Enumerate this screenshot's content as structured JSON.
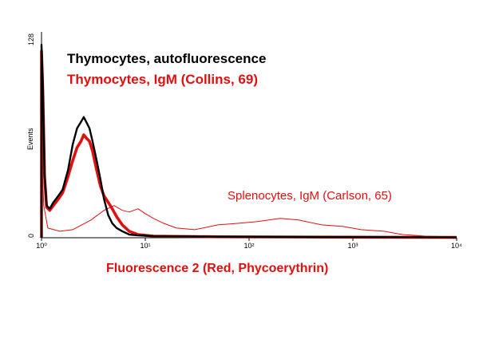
{
  "chart_data": {
    "type": "line",
    "x_scale": "log",
    "xlim": [
      1,
      10000
    ],
    "ylim": [
      0,
      128
    ],
    "xlabel": "Fluorescence 2 (Red, Phycoerythrin)",
    "ylabel": "Events",
    "y_ticks": [
      "0",
      "128"
    ],
    "x_ticks": [
      {
        "value": 1,
        "label": "10⁰"
      },
      {
        "value": 10,
        "label": "10¹"
      },
      {
        "value": 100,
        "label": "10²"
      },
      {
        "value": 1000,
        "label": "10³"
      },
      {
        "value": 10000,
        "label": "10⁴"
      }
    ],
    "legend": [
      {
        "text": "Thymocytes, autofluorescence",
        "color": "#000000"
      },
      {
        "text": "Thymocytes, IgM (Collins, 69)",
        "color": "#e01010"
      }
    ],
    "annotation": {
      "text": "Splenocytes, IgM (Carlson, 65)",
      "color": "#e01010"
    },
    "series": [
      {
        "name": "Thymocytes, autofluorescence",
        "color": "#000000",
        "width": 2.4,
        "points": [
          [
            1.0,
            0
          ],
          [
            1.0,
            120
          ],
          [
            1.03,
            95
          ],
          [
            1.07,
            40
          ],
          [
            1.12,
            20
          ],
          [
            1.2,
            18
          ],
          [
            1.3,
            22
          ],
          [
            1.45,
            26
          ],
          [
            1.6,
            30
          ],
          [
            1.8,
            42
          ],
          [
            2.0,
            58
          ],
          [
            2.2,
            68
          ],
          [
            2.4,
            72
          ],
          [
            2.55,
            75
          ],
          [
            2.7,
            72
          ],
          [
            2.9,
            68
          ],
          [
            3.1,
            60
          ],
          [
            3.4,
            48
          ],
          [
            3.7,
            36
          ],
          [
            4.0,
            24
          ],
          [
            4.4,
            14
          ],
          [
            4.8,
            9
          ],
          [
            5.3,
            6
          ],
          [
            6.0,
            4
          ],
          [
            7.0,
            2
          ],
          [
            8.5,
            1.5
          ],
          [
            12,
            1
          ],
          [
            50,
            0.6
          ],
          [
            500,
            0.4
          ],
          [
            10000,
            0.2
          ]
        ]
      },
      {
        "name": "Thymocytes, IgM (Collins, 69)",
        "color": "#e01010",
        "width": 3.6,
        "points": [
          [
            1.0,
            0
          ],
          [
            1.0,
            116
          ],
          [
            1.03,
            90
          ],
          [
            1.07,
            38
          ],
          [
            1.12,
            19
          ],
          [
            1.2,
            17
          ],
          [
            1.3,
            20
          ],
          [
            1.45,
            24
          ],
          [
            1.6,
            28
          ],
          [
            1.8,
            38
          ],
          [
            2.0,
            48
          ],
          [
            2.2,
            56
          ],
          [
            2.4,
            60
          ],
          [
            2.55,
            64
          ],
          [
            2.7,
            62
          ],
          [
            2.9,
            60
          ],
          [
            3.1,
            54
          ],
          [
            3.4,
            42
          ],
          [
            3.7,
            32
          ],
          [
            4.0,
            26
          ],
          [
            4.4,
            22
          ],
          [
            4.8,
            18
          ],
          [
            5.3,
            13
          ],
          [
            6.0,
            8
          ],
          [
            7.0,
            4
          ],
          [
            8.5,
            2
          ],
          [
            12,
            1
          ],
          [
            50,
            0.6
          ],
          [
            500,
            0.4
          ],
          [
            10000,
            0.2
          ]
        ]
      },
      {
        "name": "Splenocytes, IgM (Carlson, 65)",
        "color": "#e01010",
        "width": 1.0,
        "points": [
          [
            1.0,
            0
          ],
          [
            1.0,
            55
          ],
          [
            1.05,
            20
          ],
          [
            1.15,
            6
          ],
          [
            1.5,
            4
          ],
          [
            2.0,
            5
          ],
          [
            3.0,
            11
          ],
          [
            4.0,
            17
          ],
          [
            5.0,
            20
          ],
          [
            6.0,
            17
          ],
          [
            7.0,
            16
          ],
          [
            8.5,
            18
          ],
          [
            10,
            15
          ],
          [
            12,
            12
          ],
          [
            15,
            9
          ],
          [
            20,
            6
          ],
          [
            30,
            5
          ],
          [
            50,
            8
          ],
          [
            80,
            9
          ],
          [
            120,
            10
          ],
          [
            200,
            12
          ],
          [
            300,
            11
          ],
          [
            500,
            8
          ],
          [
            800,
            7
          ],
          [
            1200,
            5
          ],
          [
            2000,
            4
          ],
          [
            3000,
            2
          ],
          [
            5000,
            1
          ],
          [
            10000,
            0.5
          ]
        ]
      }
    ]
  }
}
